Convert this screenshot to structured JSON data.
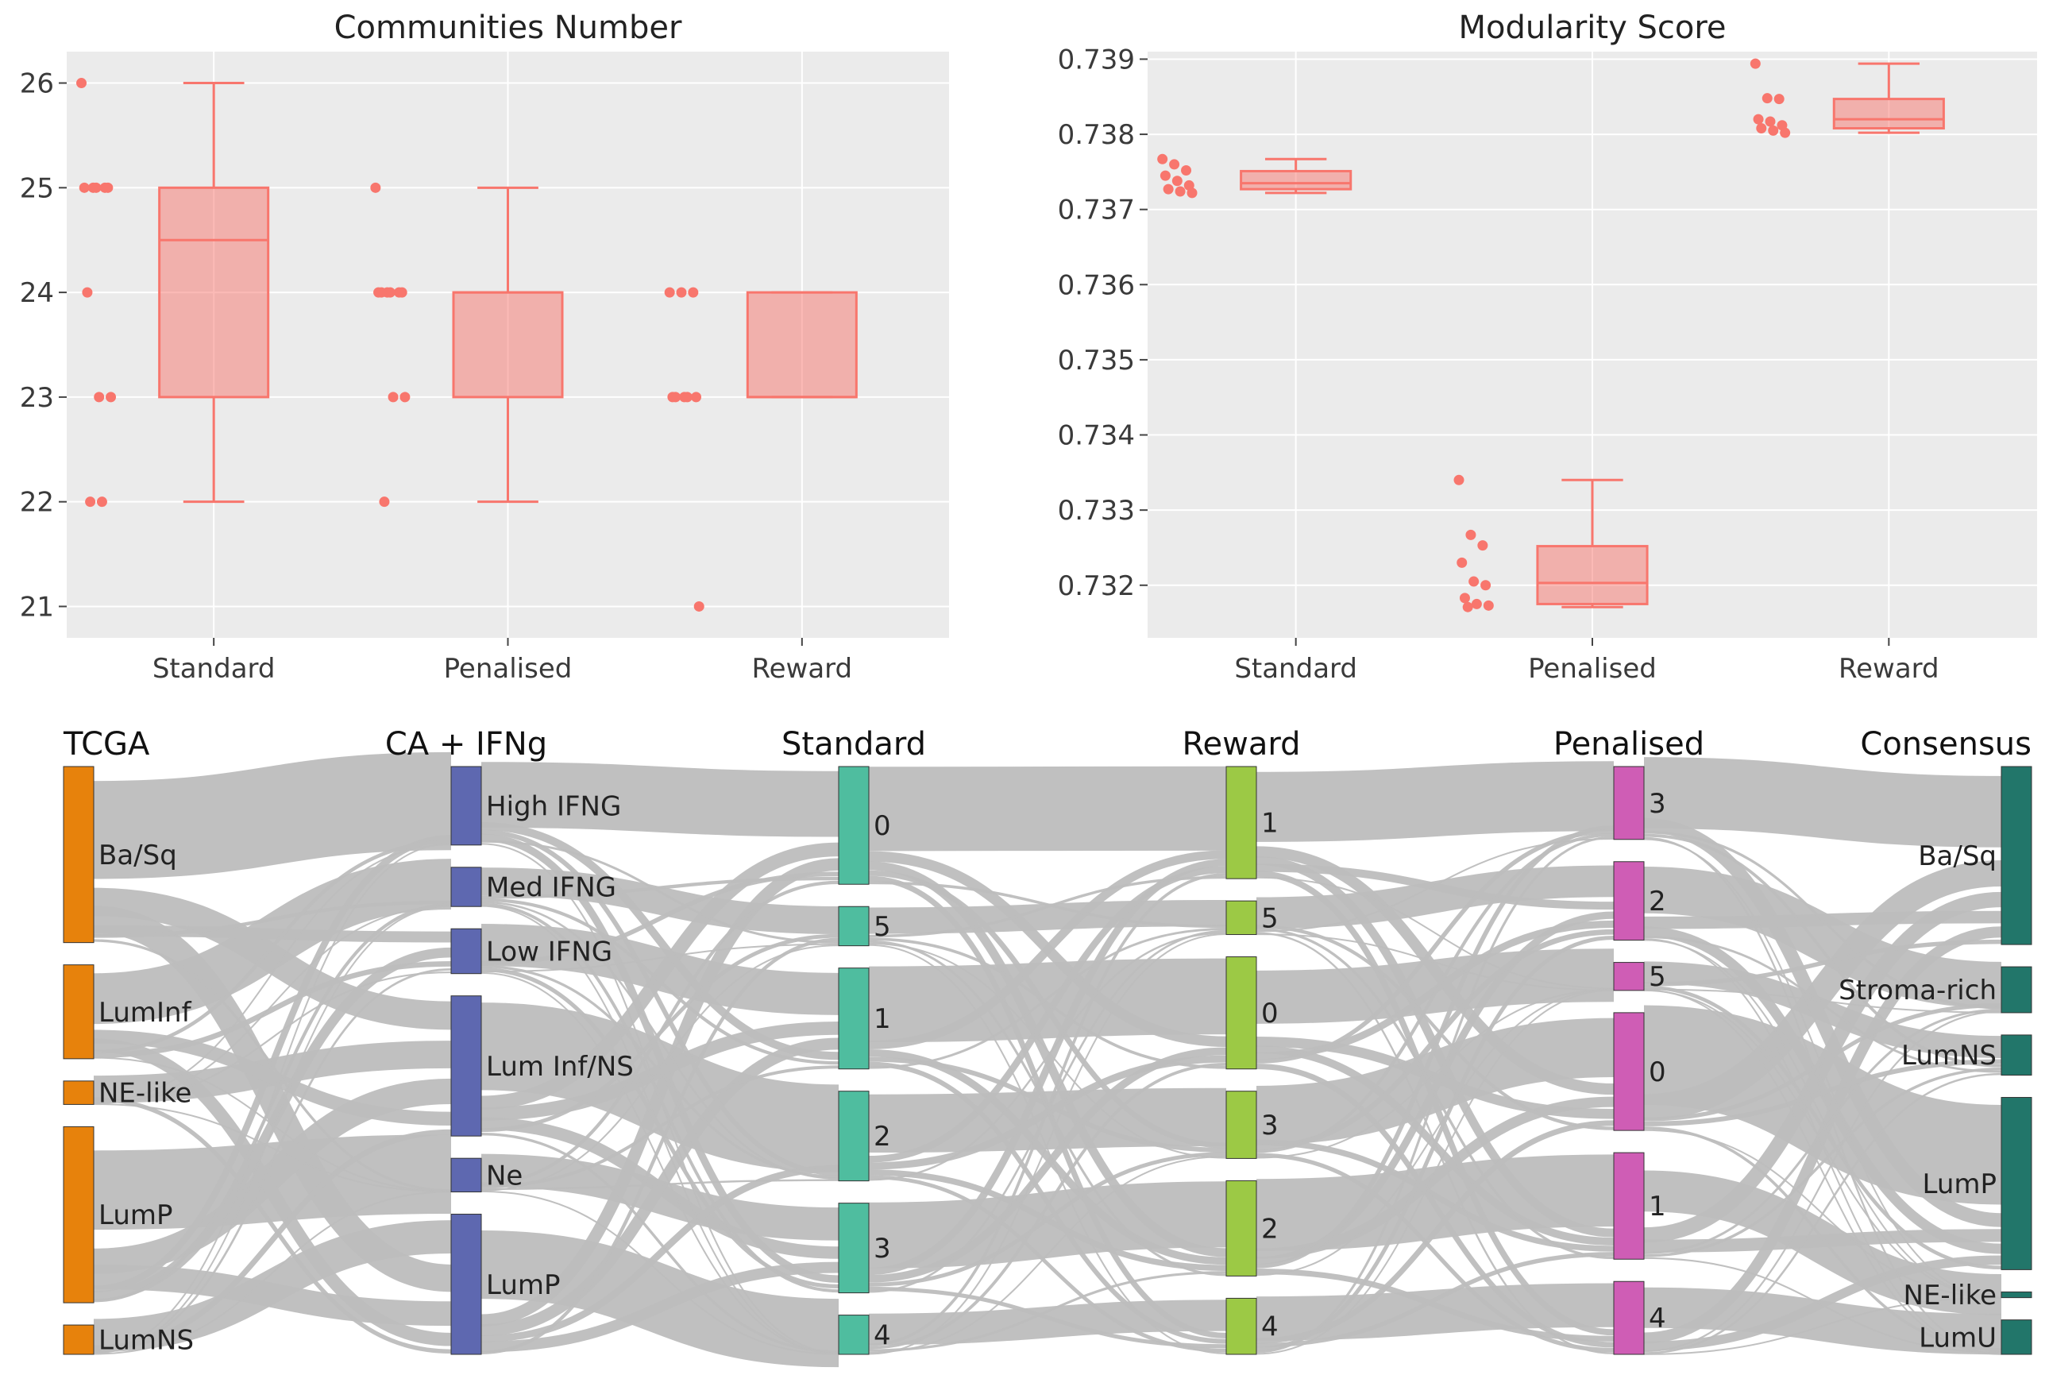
{
  "chart_data": [
    {
      "type": "box",
      "title": "Communities Number",
      "xlabel": "",
      "ylabel": "",
      "categories": [
        "Standard",
        "Penalised",
        "Reward"
      ],
      "ylim": [
        20.7,
        26.3
      ],
      "yticks": [
        21,
        22,
        23,
        24,
        25,
        26
      ],
      "grid": true,
      "color": "#f8766d",
      "boxes": [
        {
          "category": "Standard",
          "min": 22,
          "q1": 23,
          "median": 24.5,
          "q3": 25,
          "max": 26
        },
        {
          "category": "Penalised",
          "min": 22,
          "q1": 23,
          "median": 24,
          "q3": 24,
          "max": 25
        },
        {
          "category": "Reward",
          "min": 23,
          "q1": 23,
          "median": 23,
          "q3": 24,
          "max": 24
        }
      ],
      "points": [
        {
          "category": "Standard",
          "values": [
            26,
            25,
            25,
            25,
            25,
            25,
            24,
            23,
            23,
            22,
            22
          ]
        },
        {
          "category": "Penalised",
          "values": [
            25,
            24,
            24,
            24,
            24,
            24,
            24,
            23,
            23,
            22
          ]
        },
        {
          "category": "Reward",
          "values": [
            24,
            24,
            24,
            23,
            23,
            23,
            23,
            23,
            21
          ]
        }
      ]
    },
    {
      "type": "box",
      "title": "Modularity Score",
      "xlabel": "",
      "ylabel": "",
      "categories": [
        "Standard",
        "Penalised",
        "Reward"
      ],
      "ylim": [
        0.7313,
        0.7391
      ],
      "yticks": [
        0.732,
        0.733,
        0.734,
        0.735,
        0.736,
        0.737,
        0.738,
        0.739
      ],
      "ytick_labels": [
        "0.732",
        "0.733",
        "0.734",
        "0.735",
        "0.736",
        "0.737",
        "0.738",
        "0.739"
      ],
      "grid": true,
      "color": "#f8766d",
      "boxes": [
        {
          "category": "Standard",
          "min": 0.73722,
          "q1": 0.73727,
          "median": 0.73735,
          "q3": 0.73751,
          "max": 0.73767
        },
        {
          "category": "Penalised",
          "min": 0.73171,
          "q1": 0.73175,
          "median": 0.73203,
          "q3": 0.73252,
          "max": 0.7334
        },
        {
          "category": "Reward",
          "min": 0.73802,
          "q1": 0.73808,
          "median": 0.7382,
          "q3": 0.73847,
          "max": 0.73894
        }
      ],
      "points": [
        {
          "category": "Standard",
          "values": [
            0.73767,
            0.7376,
            0.73752,
            0.73745,
            0.73738,
            0.73732,
            0.73727,
            0.73724,
            0.73722
          ]
        },
        {
          "category": "Penalised",
          "values": [
            0.7334,
            0.73267,
            0.73253,
            0.7323,
            0.73205,
            0.732,
            0.73183,
            0.73175,
            0.73173,
            0.73171
          ]
        },
        {
          "category": "Reward",
          "values": [
            0.73894,
            0.73848,
            0.73847,
            0.7382,
            0.73817,
            0.73812,
            0.73808,
            0.73805,
            0.73802
          ]
        }
      ]
    },
    {
      "type": "sankey",
      "columns": [
        {
          "title": "TCGA",
          "color": "#e7820c",
          "nodes": [
            {
              "label": "Ba/Sq",
              "value": 30
            },
            {
              "label": "LumInf",
              "value": 16
            },
            {
              "label": "NE-like",
              "value": 4
            },
            {
              "label": "LumP",
              "value": 30
            },
            {
              "label": "LumNS",
              "value": 5
            }
          ]
        },
        {
          "title": "CA + IFNg",
          "color": "#5e68b0",
          "nodes": [
            {
              "label": "High IFNG",
              "value": 14
            },
            {
              "label": "Med IFNG",
              "value": 7
            },
            {
              "label": "Low IFNG",
              "value": 8
            },
            {
              "label": "Lum Inf/NS",
              "value": 25
            },
            {
              "label": "Ne",
              "value": 6
            },
            {
              "label": "LumP",
              "value": 25
            }
          ]
        },
        {
          "title": "Standard",
          "color": "#4fbd9f",
          "nodes": [
            {
              "label": "0",
              "value": 21
            },
            {
              "label": "5",
              "value": 7
            },
            {
              "label": "1",
              "value": 18
            },
            {
              "label": "2",
              "value": 16
            },
            {
              "label": "3",
              "value": 16
            },
            {
              "label": "4",
              "value": 7
            }
          ]
        },
        {
          "title": "Reward",
          "color": "#9cc945",
          "nodes": [
            {
              "label": "1",
              "value": 20
            },
            {
              "label": "5",
              "value": 6
            },
            {
              "label": "0",
              "value": 20
            },
            {
              "label": "3",
              "value": 12
            },
            {
              "label": "2",
              "value": 17
            },
            {
              "label": "4",
              "value": 10
            }
          ]
        },
        {
          "title": "Penalised",
          "color": "#cf5db5",
          "nodes": [
            {
              "label": "3",
              "value": 13
            },
            {
              "label": "2",
              "value": 14
            },
            {
              "label": "5",
              "value": 5
            },
            {
              "label": "0",
              "value": 21
            },
            {
              "label": "1",
              "value": 19
            },
            {
              "label": "4",
              "value": 13
            }
          ]
        },
        {
          "title": "Consensus",
          "color": "#22766a",
          "nodes": [
            {
              "label": "Ba/Sq",
              "value": 31
            },
            {
              "label": "Stroma-rich",
              "value": 8
            },
            {
              "label": "LumNS",
              "value": 7
            },
            {
              "label": "LumP",
              "value": 30
            },
            {
              "label": "NE-like",
              "value": 1
            },
            {
              "label": "LumU",
              "value": 6
            }
          ]
        }
      ]
    }
  ]
}
